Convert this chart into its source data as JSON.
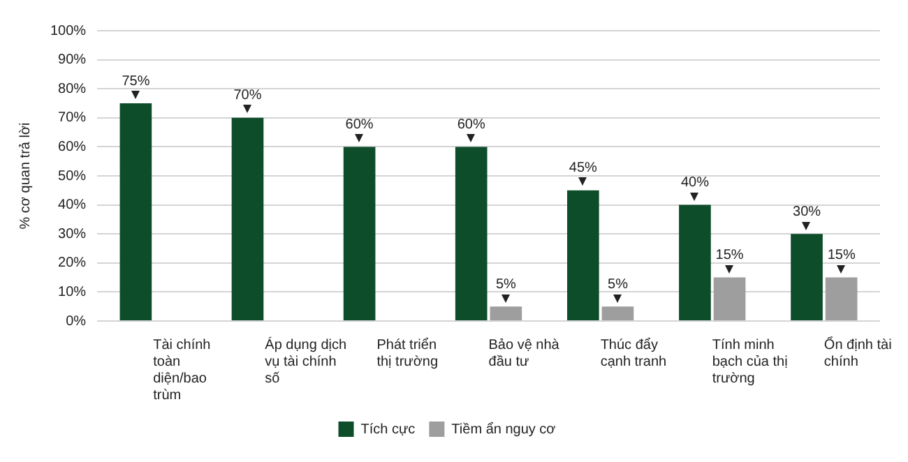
{
  "chart_data": {
    "type": "bar",
    "ylabel": "% cơ quan trả lời",
    "categories": [
      "Tài chính toàn diện/bao trùm",
      "Áp dụng dịch vụ tài chính số",
      "Phát triển thị trường",
      "Bảo vệ nhà đầu tư",
      "Thúc đẩy cạnh tranh",
      "Tính minh bạch của thị trường",
      "Ổn định tài chính"
    ],
    "series": [
      {
        "name": "Tích cực",
        "color": "#0d4d2a",
        "values": [
          75,
          70,
          60,
          60,
          45,
          40,
          30
        ],
        "value_labels": [
          "75%",
          "70%",
          "60%",
          "60%",
          "45%",
          "40%",
          "30%"
        ]
      },
      {
        "name": "Tiềm ẩn nguy cơ",
        "color": "#9e9e9e",
        "values": [
          null,
          null,
          null,
          5,
          5,
          15,
          15
        ],
        "value_labels": [
          null,
          null,
          null,
          "5%",
          "5%",
          "15%",
          "15%"
        ]
      }
    ],
    "ylim": [
      0,
      100
    ],
    "yticks": [
      {
        "value": 0,
        "label": "0%"
      },
      {
        "value": 10,
        "label": "10%"
      },
      {
        "value": 20,
        "label": "20%"
      },
      {
        "value": 30,
        "label": "30%"
      },
      {
        "value": 40,
        "label": "40%"
      },
      {
        "value": 50,
        "label": "50%"
      },
      {
        "value": 60,
        "label": "60%"
      },
      {
        "value": 70,
        "label": "70%"
      },
      {
        "value": 80,
        "label": "80%"
      },
      {
        "value": 90,
        "label": "90%"
      },
      {
        "value": 100,
        "label": "100%"
      }
    ],
    "grid": "y",
    "legend": "bottom"
  }
}
